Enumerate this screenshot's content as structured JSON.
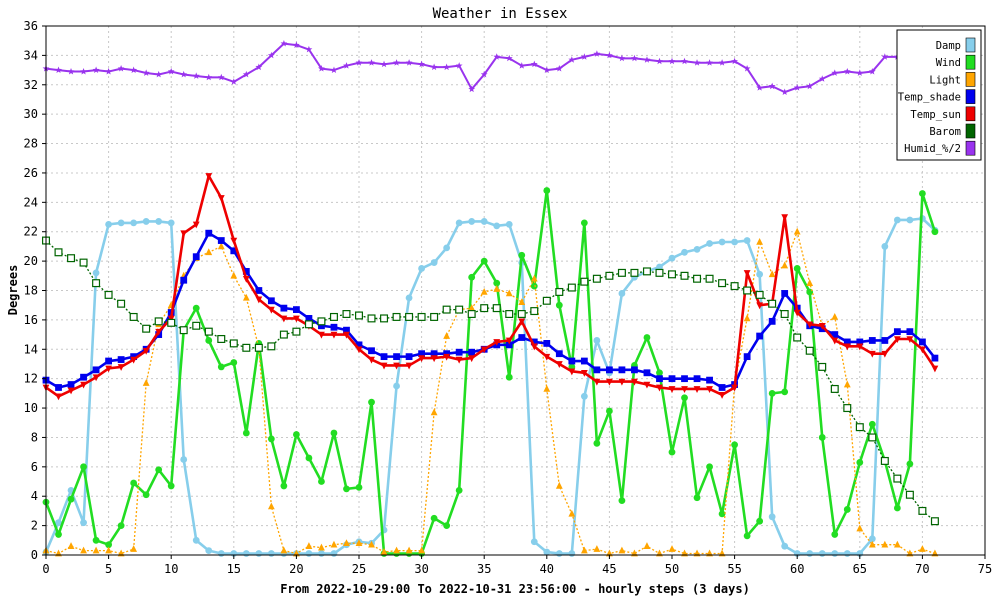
{
  "chart_data": {
    "type": "line",
    "title": "Weather in Essex",
    "ylabel": "Degrees",
    "xlabel": "From 2022-10-29:00 To 2022-10-31 23:56:00 - hourly steps (3 days)",
    "xlim": [
      0,
      75
    ],
    "ylim": [
      0,
      36
    ],
    "xticks": [
      0,
      5,
      10,
      15,
      20,
      25,
      30,
      35,
      40,
      45,
      50,
      55,
      60,
      65,
      70,
      75
    ],
    "yticks": [
      0,
      2,
      4,
      6,
      8,
      10,
      12,
      14,
      16,
      18,
      20,
      22,
      24,
      26,
      28,
      30,
      32,
      34,
      36
    ],
    "grid": true,
    "legend_position": "top-right",
    "series": [
      {
        "name": "Damp",
        "color": "#87ceeb",
        "marker": "circle",
        "values": [
          0.2,
          2.2,
          4.4,
          2.2,
          19.2,
          22.5,
          22.6,
          22.6,
          22.7,
          22.7,
          22.6,
          6.5,
          1.0,
          0.3,
          0.1,
          0.1,
          0.1,
          0.1,
          0.1,
          0.1,
          0.1,
          0.1,
          0.1,
          0.1,
          0.7,
          0.9,
          0.8,
          1.7,
          11.5,
          17.5,
          19.5,
          19.9,
          20.9,
          22.6,
          22.7,
          22.7,
          22.4,
          22.5,
          19.9,
          0.9,
          0.2,
          0.1,
          0.1,
          10.8,
          14.6,
          12.4,
          17.8,
          18.9,
          19.3,
          19.6,
          20.2,
          20.6,
          20.8,
          21.2,
          21.3,
          21.3,
          21.4,
          19.1,
          2.6,
          0.6,
          0.1,
          0.1,
          0.1,
          0.1,
          0.1,
          0.1,
          1.1,
          21.0,
          22.8,
          22.8,
          22.9,
          22.1
        ]
      },
      {
        "name": "Wind",
        "color": "#22dd22",
        "marker": "circle",
        "values": [
          3.6,
          1.4,
          3.8,
          6.0,
          1.0,
          0.7,
          2.0,
          4.9,
          4.1,
          5.8,
          4.7,
          15.3,
          16.8,
          14.6,
          12.8,
          13.1,
          8.3,
          14.4,
          7.9,
          4.7,
          8.2,
          6.6,
          5.0,
          8.3,
          4.5,
          4.6,
          10.4,
          0.1,
          0.1,
          0.1,
          0.1,
          2.5,
          2.0,
          4.4,
          18.9,
          20.0,
          18.5,
          12.1,
          20.4,
          18.3,
          24.8,
          17.0,
          12.8,
          22.6,
          7.6,
          9.8,
          3.7,
          12.9,
          14.8,
          12.4,
          7.0,
          10.7,
          3.9,
          6.0,
          2.8,
          7.5,
          1.3,
          2.3,
          11.0,
          11.1,
          19.5,
          17.9,
          8.0,
          1.4,
          3.1,
          6.3,
          8.9,
          6.4,
          3.2,
          6.2,
          24.6,
          22.0
        ]
      },
      {
        "name": "Light",
        "color": "#ffa500",
        "marker": "triangle",
        "values": [
          0.3,
          0.1,
          0.6,
          0.3,
          0.3,
          0.3,
          0.1,
          0.4,
          11.7,
          15.7,
          17.0,
          19.0,
          20.2,
          20.6,
          21.0,
          19.0,
          17.5,
          14.1,
          3.3,
          0.3,
          0.1,
          0.6,
          0.5,
          0.7,
          0.8,
          0.8,
          0.7,
          0.2,
          0.3,
          0.3,
          0.3,
          9.7,
          14.9,
          16.7,
          16.8,
          17.9,
          18.1,
          17.8,
          17.2,
          18.8,
          11.3,
          4.7,
          2.8,
          0.3,
          0.4,
          0.1,
          0.3,
          0.1,
          0.6,
          0.1,
          0.4,
          0.1,
          0.1,
          0.1,
          0.1,
          11.6,
          16.1,
          21.3,
          19.1,
          19.7,
          22.0,
          18.5,
          15.6,
          16.2,
          11.6,
          1.8,
          0.7,
          0.7,
          0.7,
          0.1,
          0.4,
          0.1
        ]
      },
      {
        "name": "Temp_shade",
        "color": "#0000ee",
        "marker": "square",
        "values": [
          11.9,
          11.4,
          11.6,
          12.1,
          12.6,
          13.2,
          13.3,
          13.5,
          14.0,
          15.0,
          16.5,
          18.7,
          20.3,
          21.9,
          21.4,
          20.7,
          19.3,
          18.0,
          17.3,
          16.8,
          16.7,
          16.1,
          15.6,
          15.5,
          15.3,
          14.3,
          13.9,
          13.5,
          13.5,
          13.5,
          13.7,
          13.7,
          13.7,
          13.8,
          13.8,
          14.0,
          14.3,
          14.3,
          14.8,
          14.5,
          14.4,
          13.7,
          13.2,
          13.2,
          12.6,
          12.6,
          12.6,
          12.6,
          12.4,
          12.0,
          12.0,
          12.0,
          12.0,
          11.9,
          11.4,
          11.6,
          13.5,
          14.9,
          15.9,
          17.8,
          16.8,
          15.6,
          15.4,
          15.0,
          14.5,
          14.5,
          14.6,
          14.6,
          15.2,
          15.2,
          14.5,
          13.4
        ]
      },
      {
        "name": "Temp_sun",
        "color": "#ee0000",
        "marker": "triangle-down",
        "values": [
          11.4,
          10.8,
          11.2,
          11.6,
          12.1,
          12.7,
          12.8,
          13.3,
          13.9,
          15.2,
          16.1,
          21.9,
          22.5,
          25.8,
          24.3,
          21.4,
          18.8,
          17.4,
          16.7,
          16.1,
          16.1,
          15.6,
          15.0,
          15.0,
          15.0,
          14.0,
          13.3,
          12.9,
          12.9,
          12.9,
          13.4,
          13.4,
          13.5,
          13.3,
          13.4,
          14.0,
          14.5,
          14.6,
          15.9,
          14.2,
          13.5,
          13.0,
          12.5,
          12.4,
          11.8,
          11.8,
          11.8,
          11.8,
          11.6,
          11.4,
          11.3,
          11.3,
          11.3,
          11.3,
          10.9,
          11.4,
          19.2,
          17.0,
          17.1,
          23.0,
          16.5,
          15.7,
          15.6,
          14.6,
          14.2,
          14.2,
          13.7,
          13.7,
          14.7,
          14.7,
          14.0,
          12.7
        ]
      },
      {
        "name": "Barom",
        "color": "#006400",
        "marker": "square-open",
        "values": [
          21.4,
          20.6,
          20.2,
          19.9,
          18.5,
          17.7,
          17.1,
          16.2,
          15.4,
          15.9,
          15.8,
          15.3,
          15.6,
          15.2,
          14.7,
          14.4,
          14.1,
          14.1,
          14.2,
          15.0,
          15.2,
          15.7,
          15.9,
          16.2,
          16.4,
          16.3,
          16.1,
          16.1,
          16.2,
          16.2,
          16.2,
          16.2,
          16.7,
          16.7,
          16.4,
          16.8,
          16.8,
          16.4,
          16.4,
          16.6,
          17.3,
          17.9,
          18.2,
          18.6,
          18.8,
          19.0,
          19.2,
          19.2,
          19.3,
          19.2,
          19.1,
          19.0,
          18.8,
          18.8,
          18.5,
          18.3,
          18.0,
          17.7,
          17.1,
          16.4,
          14.8,
          13.9,
          12.8,
          11.3,
          10.0,
          8.7,
          8.0,
          6.4,
          5.2,
          4.1,
          3.0,
          2.3
        ]
      },
      {
        "name": "Humid_%/2",
        "color": "#9933ee",
        "marker": "star",
        "values": [
          33.1,
          33.0,
          32.9,
          32.9,
          33.0,
          32.9,
          33.1,
          33.0,
          32.8,
          32.7,
          32.9,
          32.7,
          32.6,
          32.5,
          32.5,
          32.2,
          32.7,
          33.2,
          34.0,
          34.8,
          34.7,
          34.4,
          33.1,
          33.0,
          33.3,
          33.5,
          33.5,
          33.4,
          33.5,
          33.5,
          33.4,
          33.2,
          33.2,
          33.3,
          31.7,
          32.7,
          33.9,
          33.8,
          33.3,
          33.4,
          33.0,
          33.1,
          33.7,
          33.9,
          34.1,
          34.0,
          33.8,
          33.8,
          33.7,
          33.6,
          33.6,
          33.6,
          33.5,
          33.5,
          33.5,
          33.6,
          33.1,
          31.8,
          31.9,
          31.5,
          31.8,
          31.9,
          32.4,
          32.8,
          32.9,
          32.8,
          32.9,
          33.9,
          33.9,
          33.5,
          33.4,
          33.2
        ]
      }
    ]
  }
}
